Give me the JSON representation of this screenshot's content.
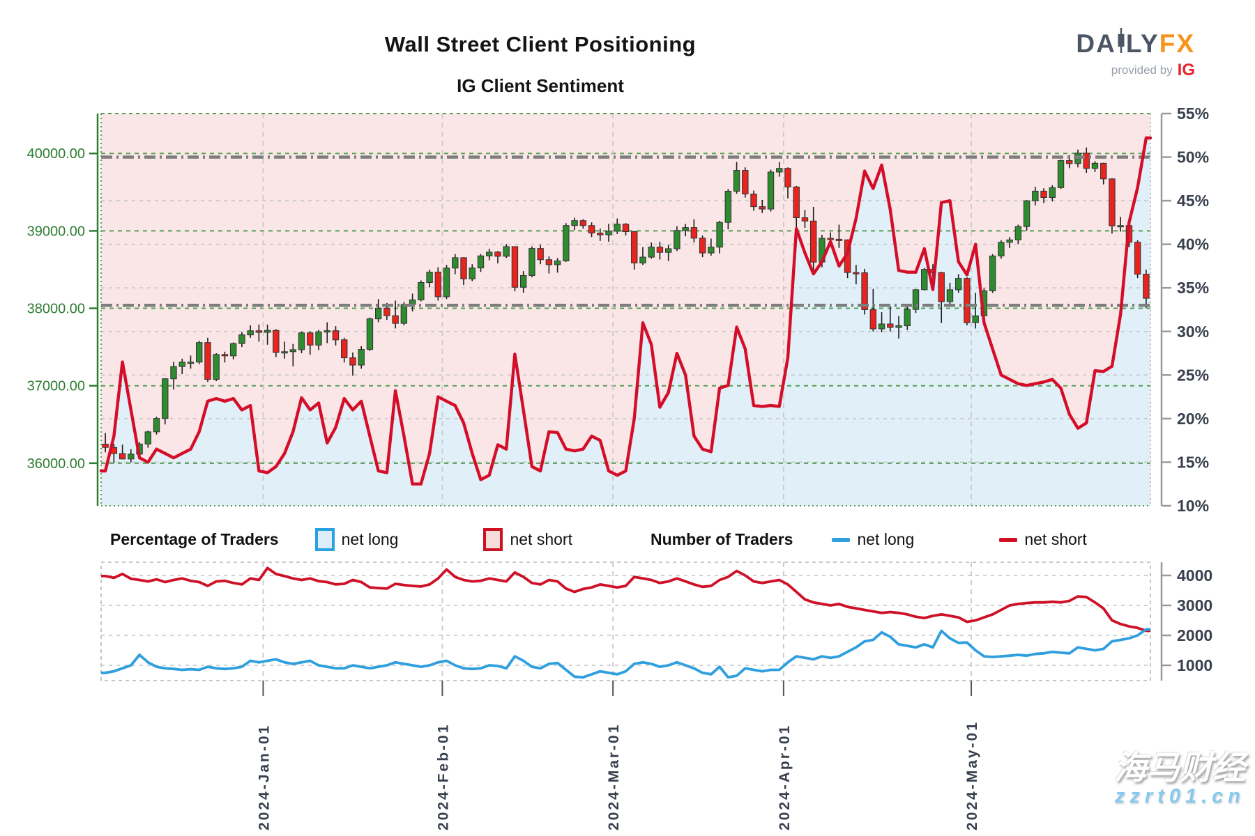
{
  "header": {
    "title": "Wall Street Client Positioning",
    "subtitle": "IG Client Sentiment"
  },
  "logo": {
    "daily_left": "DA",
    "daily_right": "LY",
    "fx": "FX",
    "provided_by": "provided by",
    "ig": "IG"
  },
  "legend": {
    "pct_title": "Percentage of Traders",
    "num_title": "Number of Traders",
    "pct_long_label": "net long",
    "pct_short_label": "net short",
    "num_long_label": "net long",
    "num_short_label": "net short"
  },
  "watermark": {
    "line1": "海马财经",
    "line2": "zzrt01.cn"
  },
  "colors": {
    "candle_up": "#2e8b30",
    "candle_down": "#e8241f",
    "wick": "#1c1c1c",
    "sentiment_line": "#d40e28",
    "short_fill": "#f2c3c3",
    "long_fill": "#bcdcf0",
    "price_axis_green": "#2e7d32",
    "price_grid_green": "#53a053",
    "pct_grid_gray": "#c6c6c6",
    "keylevel_gray": "#7d7d7d",
    "axis_text": "#39404e",
    "month_grid": "#c9c9c9",
    "traders_long_line": "#2f9fde",
    "traders_short_line": "#ce1126",
    "logo_slate": "#4b5563",
    "logo_orange": "#f7941d",
    "logo_ig_red": "#e2262e"
  },
  "chart_data": [
    {
      "type": "candlestick+area-line",
      "title": "IG Client Sentiment",
      "price_axis": {
        "labels": [
          "40000.00",
          "39000.00",
          "38000.00",
          "37000.00",
          "36000.00"
        ],
        "values": [
          40000,
          39000,
          38000,
          37000,
          36000
        ],
        "range": [
          35450,
          40515
        ]
      },
      "pct_axis": {
        "labels": [
          "55%",
          "50%",
          "45%",
          "40%",
          "35%",
          "30%",
          "25%",
          "20%",
          "15%",
          "10%"
        ],
        "values": [
          55,
          50,
          45,
          40,
          35,
          30,
          25,
          20,
          15,
          10
        ],
        "range": [
          10,
          55
        ],
        "keylevels": [
          50,
          33
        ],
        "minor_grid": [
          45,
          40,
          35,
          30,
          25,
          20,
          15
        ]
      },
      "months": [
        {
          "label": "2024-Jan-01",
          "iso": "2024-01-01"
        },
        {
          "label": "2024-Feb-01",
          "iso": "2024-02-01"
        },
        {
          "label": "2024-Mar-01",
          "iso": "2024-03-01"
        },
        {
          "label": "2024-Apr-01",
          "iso": "2024-04-01"
        },
        {
          "label": "2024-May-01",
          "iso": "2024-05-01"
        }
      ],
      "dates": [
        "2023-12-04",
        "2023-12-05",
        "2023-12-06",
        "2023-12-07",
        "2023-12-08",
        "2023-12-11",
        "2023-12-12",
        "2023-12-13",
        "2023-12-14",
        "2023-12-15",
        "2023-12-18",
        "2023-12-19",
        "2023-12-20",
        "2023-12-21",
        "2023-12-22",
        "2023-12-26",
        "2023-12-27",
        "2023-12-28",
        "2023-12-29",
        "2024-01-02",
        "2024-01-03",
        "2024-01-04",
        "2024-01-05",
        "2024-01-08",
        "2024-01-09",
        "2024-01-10",
        "2024-01-11",
        "2024-01-12",
        "2024-01-16",
        "2024-01-17",
        "2024-01-18",
        "2024-01-19",
        "2024-01-22",
        "2024-01-23",
        "2024-01-24",
        "2024-01-25",
        "2024-01-26",
        "2024-01-29",
        "2024-01-30",
        "2024-01-31",
        "2024-02-01",
        "2024-02-02",
        "2024-02-05",
        "2024-02-06",
        "2024-02-07",
        "2024-02-08",
        "2024-02-09",
        "2024-02-12",
        "2024-02-13",
        "2024-02-14",
        "2024-02-15",
        "2024-02-16",
        "2024-02-20",
        "2024-02-21",
        "2024-02-22",
        "2024-02-23",
        "2024-02-26",
        "2024-02-27",
        "2024-02-28",
        "2024-02-29",
        "2024-03-01",
        "2024-03-04",
        "2024-03-05",
        "2024-03-06",
        "2024-03-07",
        "2024-03-08",
        "2024-03-11",
        "2024-03-12",
        "2024-03-13",
        "2024-03-14",
        "2024-03-15",
        "2024-03-18",
        "2024-03-19",
        "2024-03-20",
        "2024-03-21",
        "2024-03-22",
        "2024-03-25",
        "2024-03-26",
        "2024-03-27",
        "2024-03-28",
        "2024-04-01",
        "2024-04-02",
        "2024-04-03",
        "2024-04-04",
        "2024-04-05",
        "2024-04-08",
        "2024-04-09",
        "2024-04-10",
        "2024-04-11",
        "2024-04-12",
        "2024-04-15",
        "2024-04-16",
        "2024-04-17",
        "2024-04-18",
        "2024-04-19",
        "2024-04-22",
        "2024-04-23",
        "2024-04-24",
        "2024-04-25",
        "2024-04-26",
        "2024-04-29",
        "2024-04-30",
        "2024-05-01",
        "2024-05-02",
        "2024-05-03",
        "2024-05-06",
        "2024-05-07",
        "2024-05-08",
        "2024-05-09",
        "2024-05-10",
        "2024-05-13",
        "2024-05-14",
        "2024-05-15",
        "2024-05-16",
        "2024-05-17",
        "2024-05-20",
        "2024-05-21",
        "2024-05-22",
        "2024-05-23",
        "2024-05-24",
        "2024-05-28",
        "2024-05-29",
        "2024-05-30"
      ],
      "open": [
        36246,
        36204,
        36124,
        36054,
        36117,
        36248,
        36405,
        36578,
        37090,
        37248,
        37305,
        37306,
        37558,
        37082,
        37404,
        37386,
        37545,
        37657,
        37710,
        37690,
        37715,
        37430,
        37440,
        37466,
        37683,
        37525,
        37696,
        37711,
        37593,
        37361,
        37267,
        37469,
        37864,
        38002,
        37905,
        37806,
        38049,
        38109,
        38333,
        38467,
        38150,
        38520,
        38654,
        38380,
        38521,
        38677,
        38726,
        38672,
        38797,
        38272,
        38424,
        38773,
        38628,
        38563,
        38612,
        39069,
        39132,
        39069,
        38972,
        38949,
        38996,
        39087,
        38990,
        38585,
        38661,
        38791,
        38723,
        38770,
        39005,
        39043,
        38906,
        38715,
        38790,
        39110,
        39512,
        39781,
        39476,
        39313,
        39282,
        39760,
        39807,
        39567,
        39170,
        39127,
        38597,
        38904,
        38892,
        38884,
        38462,
        38459,
        37983,
        37735,
        37798,
        37753,
        37775,
        37986,
        38240,
        38503,
        38461,
        38086,
        38240,
        38386,
        37815,
        37903,
        38226,
        38676,
        38852,
        38884,
        39056,
        39388,
        39513,
        39431,
        39558,
        39908,
        39869,
        40004,
        39807,
        39873,
        39671,
        39065,
        39069,
        38853,
        38441
      ],
      "high": [
        36390,
        36250,
        36240,
        36180,
        36270,
        36420,
        36600,
        37100,
        37310,
        37350,
        37390,
        37580,
        37620,
        37420,
        37440,
        37560,
        37690,
        37780,
        37790,
        37790,
        37730,
        37570,
        37540,
        37700,
        37700,
        37720,
        37820,
        37770,
        37620,
        37430,
        37510,
        37880,
        38120,
        38070,
        38100,
        38080,
        38190,
        38360,
        38500,
        38530,
        38560,
        38700,
        38660,
        38570,
        38700,
        38770,
        38740,
        38830,
        38800,
        38480,
        38800,
        38820,
        38670,
        38650,
        39100,
        39170,
        39150,
        39110,
        39030,
        39090,
        39160,
        39100,
        39000,
        38790,
        38850,
        38860,
        38820,
        39060,
        39090,
        39150,
        38940,
        38900,
        39130,
        39540,
        39890,
        39820,
        39520,
        39400,
        39790,
        39889,
        39820,
        39580,
        39270,
        39310,
        38950,
        38980,
        39080,
        38890,
        38560,
        38510,
        38250,
        37950,
        38030,
        37900,
        38020,
        38250,
        38520,
        38570,
        38470,
        38330,
        38440,
        38400,
        38200,
        38260,
        38700,
        38880,
        38920,
        39080,
        39400,
        39570,
        39550,
        39590,
        39920,
        39980,
        40050,
        40077,
        39900,
        39880,
        39680,
        39180,
        39090,
        38880,
        38500
      ],
      "low": [
        36140,
        36000,
        36050,
        36010,
        36060,
        36200,
        36370,
        36500,
        36950,
        37150,
        37220,
        37280,
        37050,
        37060,
        37300,
        37340,
        37500,
        37620,
        37570,
        37530,
        37370,
        37350,
        37250,
        37420,
        37400,
        37460,
        37550,
        37520,
        37300,
        37130,
        37220,
        37450,
        37820,
        37850,
        37740,
        37780,
        37960,
        38090,
        38270,
        38100,
        38120,
        38440,
        38300,
        38350,
        38470,
        38620,
        38580,
        38650,
        38220,
        38200,
        38400,
        38570,
        38450,
        38460,
        38600,
        39010,
        39030,
        38920,
        38870,
        38860,
        38960,
        38940,
        38500,
        38560,
        38640,
        38630,
        38610,
        38740,
        38930,
        38850,
        38660,
        38680,
        38710,
        39020,
        39480,
        39430,
        39260,
        39230,
        39250,
        39700,
        39420,
        38920,
        39040,
        38450,
        38530,
        38800,
        38780,
        38390,
        38310,
        37920,
        37700,
        37690,
        37700,
        37610,
        37720,
        37940,
        38230,
        38370,
        37810,
        38050,
        38200,
        37780,
        37740,
        37860,
        38200,
        38640,
        38780,
        38830,
        39000,
        39330,
        39360,
        39380,
        39540,
        39810,
        39820,
        39750,
        39760,
        39600,
        38965,
        38990,
        38790,
        38390,
        38000
      ],
      "close": [
        36204,
        36124,
        36054,
        36117,
        36248,
        36405,
        36578,
        37090,
        37248,
        37305,
        37306,
        37558,
        37082,
        37404,
        37386,
        37545,
        37657,
        37710,
        37690,
        37715,
        37430,
        37440,
        37466,
        37683,
        37525,
        37696,
        37711,
        37593,
        37361,
        37267,
        37469,
        37864,
        38002,
        37905,
        37806,
        38049,
        38109,
        38333,
        38467,
        38150,
        38520,
        38654,
        38380,
        38521,
        38677,
        38726,
        38672,
        38797,
        38272,
        38424,
        38773,
        38628,
        38563,
        38612,
        39069,
        39132,
        39069,
        38972,
        38949,
        38996,
        39087,
        38990,
        38585,
        38661,
        38791,
        38723,
        38770,
        39005,
        39043,
        38906,
        38715,
        38790,
        39110,
        39512,
        39781,
        39476,
        39313,
        39282,
        39760,
        39807,
        39567,
        39170,
        39127,
        38597,
        38904,
        38892,
        38884,
        38462,
        38459,
        37983,
        37735,
        37798,
        37753,
        37775,
        37986,
        38240,
        38503,
        38461,
        38086,
        38240,
        38386,
        37815,
        37903,
        38226,
        38676,
        38852,
        38884,
        39056,
        39388,
        39513,
        39431,
        39558,
        39908,
        39869,
        40004,
        39807,
        39873,
        39671,
        39065,
        39069,
        38853,
        38441,
        38130
      ],
      "pct_net_long": [
        14.0,
        18.0,
        26.5,
        21.0,
        15.5,
        15.0,
        16.5,
        16.0,
        15.5,
        16.0,
        16.5,
        18.5,
        22.0,
        22.3,
        22.0,
        22.3,
        21.0,
        21.5,
        14.0,
        13.8,
        14.5,
        16.0,
        18.5,
        22.4,
        21.0,
        21.8,
        17.2,
        19.0,
        22.3,
        21.0,
        22.0,
        18.0,
        14.0,
        13.8,
        23.2,
        18.0,
        12.5,
        12.5,
        16.0,
        22.5,
        22.0,
        21.5,
        19.5,
        16.0,
        13.0,
        13.5,
        17.0,
        16.5,
        27.4,
        21.0,
        14.5,
        14.0,
        18.5,
        18.4,
        16.5,
        16.3,
        16.5,
        18.0,
        17.5,
        14.0,
        13.5,
        14.0,
        20.0,
        31.0,
        28.5,
        21.3,
        23.0,
        27.5,
        25.0,
        18.0,
        16.5,
        16.2,
        23.5,
        23.8,
        30.5,
        28.0,
        21.5,
        21.4,
        21.5,
        21.4,
        27.0,
        41.8,
        39.0,
        36.6,
        38.0,
        40.3,
        37.5,
        39.0,
        43.0,
        48.4,
        46.4,
        49.1,
        44.0,
        37.0,
        36.8,
        36.8,
        39.5,
        34.8,
        44.8,
        45.0,
        38.0,
        36.5,
        40.0,
        31.0,
        28.0,
        25.0,
        24.5,
        24.0,
        23.8,
        24.0,
        24.2,
        24.5,
        23.5,
        20.5,
        18.9,
        19.5,
        25.5,
        25.4,
        26.0,
        32.0,
        42.5,
        46.5,
        52.2
      ]
    },
    {
      "type": "line",
      "title": "Number of Traders",
      "value_axis": {
        "labels": [
          "4000",
          "3000",
          "2000",
          "1000"
        ],
        "values": [
          4000,
          3000,
          2000,
          1000
        ]
      },
      "series": [
        {
          "name": "net long",
          "values": [
            750,
            800,
            900,
            1000,
            1350,
            1100,
            950,
            900,
            880,
            850,
            870,
            850,
            950,
            900,
            880,
            900,
            950,
            1150,
            1100,
            1150,
            1200,
            1100,
            1050,
            1100,
            1150,
            1000,
            950,
            900,
            900,
            1000,
            950,
            900,
            950,
            1000,
            1100,
            1050,
            1000,
            950,
            1000,
            1100,
            1150,
            1000,
            900,
            880,
            900,
            1000,
            980,
            900,
            1300,
            1150,
            950,
            900,
            1050,
            1080,
            850,
            620,
            600,
            700,
            800,
            750,
            700,
            800,
            1050,
            1100,
            1050,
            950,
            1000,
            1100,
            1000,
            900,
            750,
            700,
            950,
            600,
            650,
            900,
            850,
            800,
            850,
            850,
            1100,
            1300,
            1250,
            1200,
            1300,
            1250,
            1300,
            1450,
            1600,
            1800,
            1850,
            2100,
            1950,
            1700,
            1650,
            1600,
            1700,
            1600,
            2150,
            1900,
            1750,
            1760,
            1500,
            1300,
            1280,
            1300,
            1320,
            1350,
            1320,
            1380,
            1400,
            1450,
            1420,
            1400,
            1600,
            1550,
            1500,
            1550,
            1800,
            1850,
            1900,
            2000,
            2200
          ]
        },
        {
          "name": "net short",
          "values": [
            3980,
            3920,
            4050,
            3890,
            3850,
            3800,
            3870,
            3780,
            3850,
            3900,
            3820,
            3780,
            3650,
            3800,
            3820,
            3750,
            3700,
            3900,
            3850,
            4250,
            4050,
            3980,
            3900,
            3850,
            3900,
            3810,
            3780,
            3700,
            3720,
            3850,
            3780,
            3600,
            3580,
            3560,
            3720,
            3680,
            3650,
            3630,
            3700,
            3900,
            4200,
            3950,
            3850,
            3800,
            3820,
            3900,
            3850,
            3800,
            4100,
            3950,
            3750,
            3700,
            3850,
            3800,
            3560,
            3450,
            3550,
            3600,
            3700,
            3650,
            3600,
            3650,
            3950,
            3900,
            3850,
            3750,
            3800,
            3900,
            3800,
            3700,
            3620,
            3650,
            3850,
            3950,
            4150,
            4000,
            3800,
            3750,
            3800,
            3850,
            3700,
            3450,
            3200,
            3100,
            3050,
            3000,
            3050,
            2950,
            2900,
            2850,
            2800,
            2750,
            2780,
            2750,
            2700,
            2620,
            2580,
            2650,
            2700,
            2650,
            2600,
            2450,
            2500,
            2600,
            2700,
            2850,
            3000,
            3050,
            3080,
            3100,
            3100,
            3120,
            3100,
            3150,
            3300,
            3280,
            3100,
            2900,
            2500,
            2380,
            2300,
            2250,
            2150
          ]
        }
      ]
    }
  ]
}
